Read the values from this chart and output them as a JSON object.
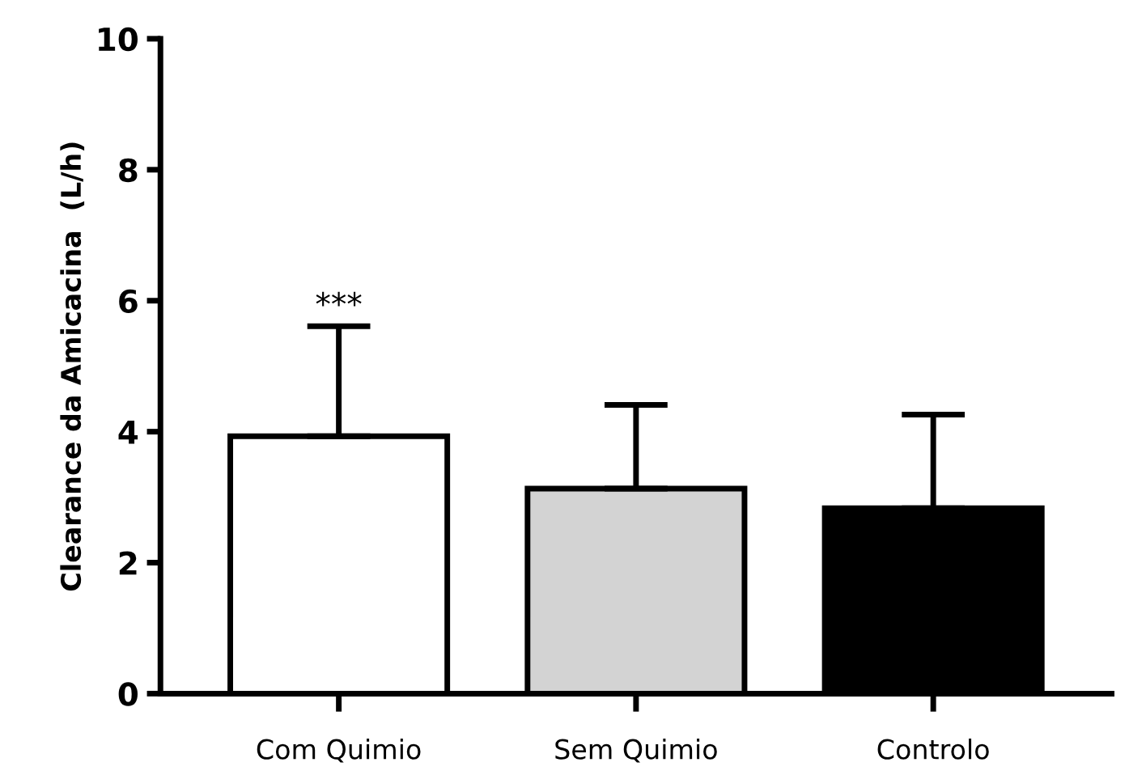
{
  "chart_data": {
    "type": "bar",
    "ylabel": "Clearance da Amicacina  (L/h)",
    "categories": [
      "Com Quimio",
      "Sem Quimio",
      "Controlo"
    ],
    "values": [
      3.93,
      3.13,
      2.83
    ],
    "colors": [
      "#ffffff",
      "#d3d3d3",
      "#000000"
    ],
    "errors": [
      [
        3.93,
        5.61
      ],
      [
        3.13,
        4.41
      ],
      [
        2.83,
        4.26
      ]
    ],
    "ylim": [
      0,
      10
    ],
    "yticks": [
      0,
      2,
      4,
      6,
      8,
      10
    ],
    "grid": false,
    "annotations": [
      {
        "text": "***",
        "x": "Com Quimio",
        "y": 5.61
      }
    ]
  }
}
